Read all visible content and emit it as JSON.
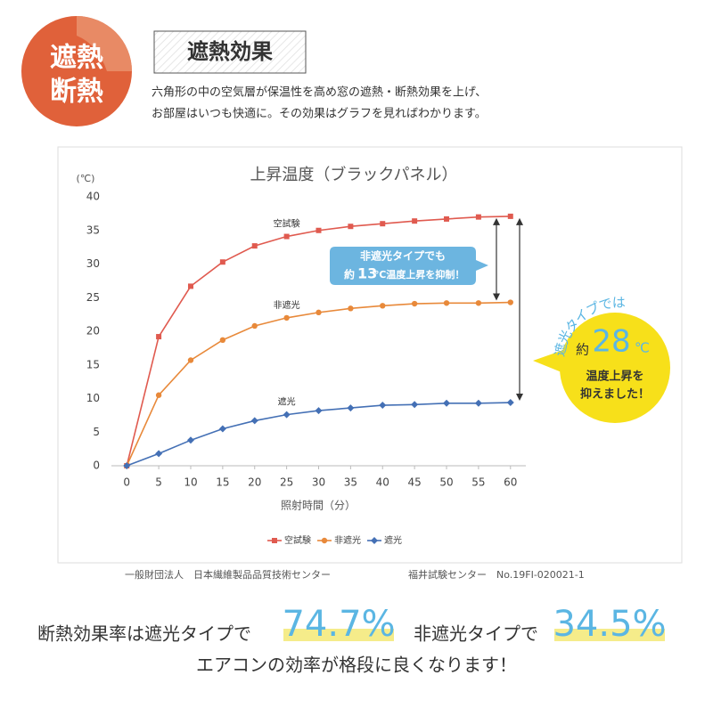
{
  "badge": [
    "遮熱",
    "断熱"
  ],
  "heading": "遮熱効果",
  "description": [
    "六角形の中の空気層が保温性を高め窓の遮熱・断熱効果を上げ、",
    "お部屋はいつも快適に。その効果はグラフを見ればわかります。"
  ],
  "chart_data": {
    "type": "line",
    "title": "上昇温度（ブラックパネル）",
    "y_label": "(℃)",
    "x_label": "照射時間（分）",
    "x": [
      0,
      5,
      10,
      15,
      20,
      25,
      30,
      35,
      40,
      45,
      50,
      55,
      60
    ],
    "xlim": [
      -2.4,
      62.4
    ],
    "xticks": [
      0,
      5,
      10,
      15,
      20,
      25,
      30,
      35,
      40,
      45,
      50,
      55,
      60
    ],
    "ylim": [
      0,
      40
    ],
    "yticks": [
      0,
      5,
      10,
      15,
      20,
      25,
      30,
      35,
      40
    ],
    "grid": false,
    "legend": "bottom",
    "series": [
      {
        "name": "空試験",
        "color": "#e05a4f",
        "marker": "square",
        "values": [
          0,
          19.2,
          26.7,
          30.3,
          32.7,
          34.1,
          35.0,
          35.6,
          36.0,
          36.4,
          36.7,
          37.0,
          37.1
        ]
      },
      {
        "name": "非遮光",
        "color": "#e8893a",
        "marker": "circle",
        "values": [
          0,
          10.5,
          15.7,
          18.7,
          20.8,
          22.0,
          22.8,
          23.4,
          23.8,
          24.1,
          24.2,
          24.2,
          24.3
        ]
      },
      {
        "name": "遮光",
        "color": "#4470b5",
        "marker": "diamond",
        "values": [
          0,
          1.8,
          3.8,
          5.5,
          6.7,
          7.6,
          8.2,
          8.6,
          9.0,
          9.1,
          9.3,
          9.3,
          9.4
        ]
      }
    ],
    "annotations": {
      "box": [
        "非遮光タイプでも",
        "約",
        "13",
        "℃温度上昇を抑制！"
      ],
      "circle": [
        "遮光タイプでは",
        "約",
        "28",
        "℃",
        "温度上昇を",
        "抑えました！"
      ]
    }
  },
  "source": [
    "一般財団法人　日本繊維製品品質技術センター",
    "福井試験センター　No.19FI-020021-1"
  ],
  "footer": [
    "断熱効果率は遮光タイプで",
    "74.7%",
    "非遮光タイプで",
    "34.5%",
    "エアコンの効率が格段に良くなります！"
  ]
}
